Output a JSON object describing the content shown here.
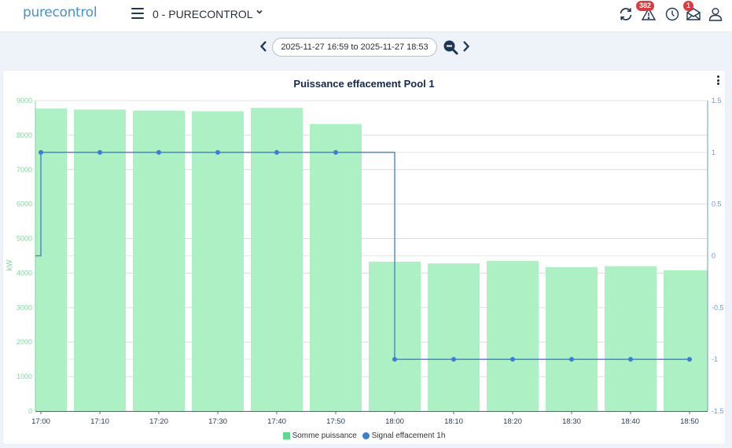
{
  "header": {
    "logo": "purecontrol",
    "site_name": "0 - PURECONTROL",
    "alerts_badge": "382",
    "messages_badge": "1",
    "icons": [
      "menu-icon",
      "chevron-down-icon",
      "refresh-icon",
      "warning-icon",
      "clock-icon",
      "mail-icon",
      "user-icon"
    ]
  },
  "range": {
    "label": "2025-11-27 16:59 to 2025-11-27 18:53",
    "prev": "‹",
    "next": "›"
  },
  "colors": {
    "bar": "#acf0c4",
    "bar_legend": "#5fd98e",
    "line": "#3b7dd8",
    "left_axis": "#7fd9a0",
    "right_axis": "#6d98d6",
    "title": "#14284b"
  },
  "chart_data": {
    "type": "bar",
    "title": "Puissance effacement Pool 1",
    "xlabel": "",
    "ylabel": "kW",
    "ylim": [
      0,
      9000
    ],
    "y2lim": [
      -1.5,
      1.5
    ],
    "yticks": [
      0,
      1000,
      2000,
      3000,
      4000,
      5000,
      6000,
      7000,
      8000,
      9000
    ],
    "y2ticks": [
      -1.5,
      -1,
      -0.5,
      0,
      0.5,
      1,
      1.5
    ],
    "categories": [
      "17:00",
      "17:10",
      "17:20",
      "17:30",
      "17:40",
      "17:50",
      "18:00",
      "18:10",
      "18:20",
      "18:30",
      "18:40",
      "18:50"
    ],
    "series": [
      {
        "name": "Somme puissance",
        "type": "bar",
        "axis": "left",
        "values": [
          8770,
          8740,
          8710,
          8690,
          8790,
          8320,
          4330,
          4280,
          4350,
          4170,
          4200,
          4080
        ]
      },
      {
        "name": "Signal effacement 1h",
        "type": "step-line",
        "axis": "right",
        "start_value": 0,
        "values": [
          1,
          1,
          1,
          1,
          1,
          1,
          -1,
          -1,
          -1,
          -1,
          -1,
          -1
        ]
      }
    ],
    "legend": [
      "Somme puissance",
      "Signal effacement 1h"
    ],
    "legend_position": "bottom",
    "grid": true
  }
}
